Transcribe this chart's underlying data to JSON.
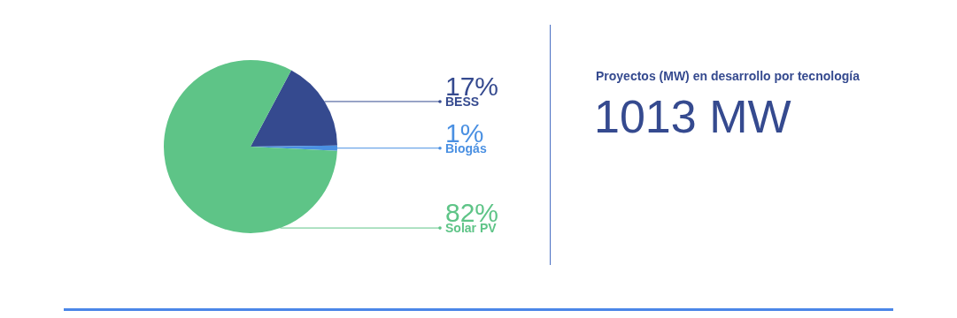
{
  "chart_data": {
    "type": "pie",
    "title": "Proyectos (MW) en desarrollo por tecnología",
    "annotations": [
      "1013 MW"
    ],
    "categories": [
      "BESS",
      "Biogás",
      "Solar PV"
    ],
    "values": [
      17,
      1,
      82
    ],
    "value_labels": [
      "17%",
      "1%",
      "82%"
    ],
    "colors": [
      "#354a8f",
      "#4a90e2",
      "#5ec487"
    ],
    "legend": false
  }
}
